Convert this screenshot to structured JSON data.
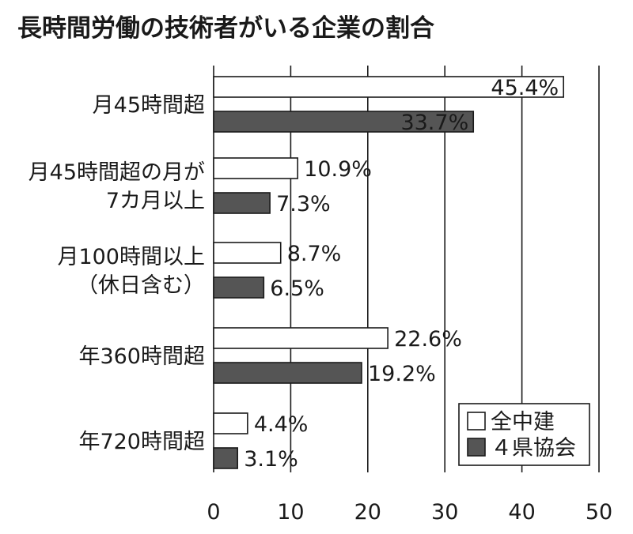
{
  "colors": {
    "series_1": "#ffffff",
    "series_2": "#555555",
    "stroke": "#1a1a1a",
    "grid": "#1a1a1a"
  },
  "chart_data": {
    "type": "bar",
    "orientation": "horizontal",
    "title": "長時間労働の技術者がいる企業の割合",
    "xlabel": "",
    "ylabel": "",
    "xlim": [
      0,
      50
    ],
    "ticks": [
      0,
      10,
      20,
      30,
      40,
      50
    ],
    "grid": true,
    "legend_position": "bottom-right",
    "categories": [
      [
        "月45時間超"
      ],
      [
        "月45時間超の月が",
        "7カ月以上"
      ],
      [
        "月100時間以上",
        "（休日含む）"
      ],
      [
        "年360時間超"
      ],
      [
        "年720時間超"
      ]
    ],
    "series": [
      {
        "name": "全中建",
        "values": [
          45.4,
          10.9,
          8.7,
          22.6,
          4.4
        ],
        "labels": [
          "45.4%",
          "10.9%",
          "8.7%",
          "22.6%",
          "4.4%"
        ]
      },
      {
        "name": "４県協会",
        "values": [
          33.7,
          7.3,
          6.5,
          19.2,
          3.1
        ],
        "labels": [
          "33.7%",
          "7.3%",
          "6.5%",
          "19.2%",
          "3.1%"
        ]
      }
    ]
  }
}
